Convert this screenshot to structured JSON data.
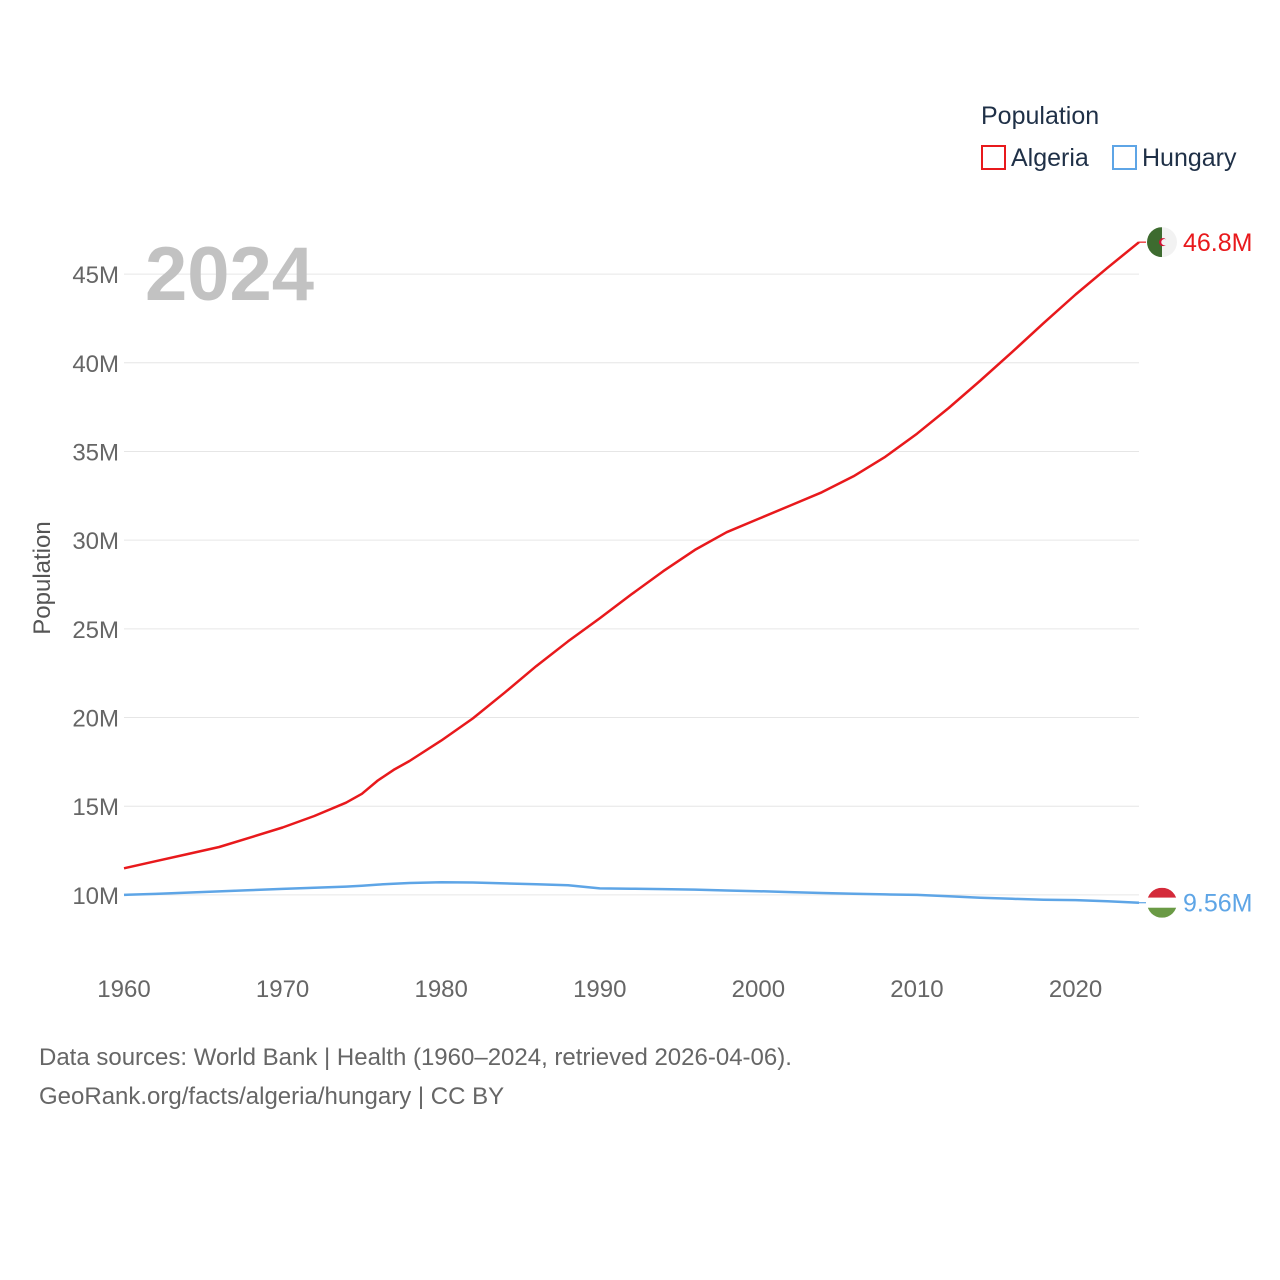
{
  "chart_data": {
    "type": "line",
    "year_label": "2024",
    "ylabel": "Population",
    "xlim": [
      1960,
      2024
    ],
    "ylim": [
      6500000,
      48500000
    ],
    "x_ticks": [
      1960,
      1970,
      1980,
      1990,
      2000,
      2010,
      2020
    ],
    "y_ticks": [
      {
        "value": 10000000,
        "label": "10M"
      },
      {
        "value": 15000000,
        "label": "15M"
      },
      {
        "value": 20000000,
        "label": "20M"
      },
      {
        "value": 25000000,
        "label": "25M"
      },
      {
        "value": 30000000,
        "label": "30M"
      },
      {
        "value": 35000000,
        "label": "35M"
      },
      {
        "value": 40000000,
        "label": "40M"
      },
      {
        "value": 45000000,
        "label": "45M"
      }
    ],
    "legend": {
      "title": "Population",
      "position": "top-right"
    },
    "x": [
      1960,
      1962,
      1964,
      1966,
      1968,
      1970,
      1972,
      1974,
      1975,
      1976,
      1977,
      1978,
      1980,
      1982,
      1984,
      1986,
      1988,
      1990,
      1992,
      1994,
      1996,
      1998,
      2000,
      2002,
      2004,
      2006,
      2008,
      2010,
      2012,
      2014,
      2016,
      2018,
      2020,
      2022,
      2024
    ],
    "series": [
      {
        "name": "Algeria",
        "color": "#e8191c",
        "flag": "algeria-flag",
        "end_label": "46.8M",
        "values": [
          11.5,
          11.9,
          12.3,
          12.7,
          13.25,
          13.8,
          14.45,
          15.2,
          15.7,
          16.45,
          17.05,
          17.55,
          18.7,
          19.95,
          21.4,
          22.9,
          24.3,
          25.6,
          26.95,
          28.25,
          29.45,
          30.45,
          31.2,
          31.95,
          32.7,
          33.6,
          34.7,
          36.0,
          37.45,
          39.0,
          40.6,
          42.25,
          43.85,
          45.35,
          46.8
        ]
      },
      {
        "name": "Hungary",
        "color": "#5ea5e6",
        "flag": "hungary-flag",
        "end_label": "9.56M",
        "values": [
          10.0,
          10.06,
          10.13,
          10.2,
          10.27,
          10.34,
          10.4,
          10.47,
          10.52,
          10.58,
          10.63,
          10.67,
          10.71,
          10.7,
          10.65,
          10.6,
          10.55,
          10.37,
          10.35,
          10.33,
          10.3,
          10.25,
          10.21,
          10.16,
          10.11,
          10.07,
          10.03,
          10.0,
          9.93,
          9.84,
          9.78,
          9.73,
          9.71,
          9.64,
          9.56
        ]
      }
    ]
  },
  "footer": {
    "line1": "Data sources: World Bank | Health (1960–2024, retrieved 2026-04-06).",
    "line2": "GeoRank.org/facts/algeria/hungary | CC BY"
  }
}
